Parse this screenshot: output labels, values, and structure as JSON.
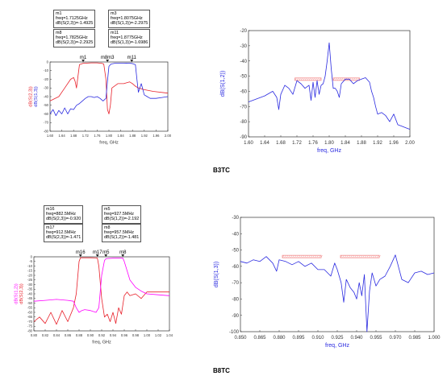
{
  "sections": [
    {
      "caption": "B3TC",
      "left_markers": [
        {
          "name": "m1",
          "line1": "freq=1.7125GHz",
          "line2": "dB(S(2,3))=-1.4925"
        },
        {
          "name": "m3",
          "line1": "freq=1.8075GHz",
          "line2": "dB(S(1,3))=-2.2975"
        },
        {
          "name": "m8",
          "line1": "freq=1.7825GHz",
          "line2": "dB(S(2,3))=-2.2925"
        },
        {
          "name": "m11",
          "line1": "freq=1.8775GHz",
          "line2": "dB(S(1,3))=-1.6986"
        }
      ]
    },
    {
      "caption": "B8TC",
      "left_markers": [
        {
          "name": "m16",
          "line1": "freq=882.5MHz",
          "line2": "dB(S(2,3))=-0.920"
        },
        {
          "name": "m5",
          "line1": "freq=927.5MHz",
          "line2": "dB(S(1,2))=-2.192"
        },
        {
          "name": "m17",
          "line1": "freq=912.5MHz",
          "line2": "dB(S(2,3))=-1.471"
        },
        {
          "name": "m8",
          "line1": "freq=957.5MHz",
          "line2": "dB(S(1,2))=-1.481"
        }
      ]
    }
  ],
  "colors": {
    "red": "#e8202a",
    "blue": "#2a2ae0",
    "magenta": "#ff00ff",
    "bandmark": "#f28b8b",
    "axis": "#333333"
  },
  "chart_data": [
    {
      "id": "b3tc-left",
      "type": "line",
      "xlabel": "freq, GHz",
      "ylabel": [
        "dB(S(2,3))",
        "dB(S(1,3))"
      ],
      "xlim": [
        1.6,
        2.0
      ],
      "ylim": [
        -80,
        0
      ],
      "xticks": [
        "1.60",
        "1.64",
        "1.68",
        "1.72",
        "1.76",
        "1.80",
        "1.84",
        "1.88",
        "1.92",
        "1.96",
        "2.00"
      ],
      "yticks": [
        "0",
        "-10",
        "-20",
        "-30",
        "-40",
        "-50",
        "-60",
        "-70",
        "-80"
      ],
      "marker_labels": [
        {
          "name": "m1",
          "x": 1.7125
        },
        {
          "name": "m8m3",
          "x": 1.795
        },
        {
          "name": "m11",
          "x": 1.8775
        }
      ],
      "series": [
        {
          "name": "dB(S(2,3))",
          "color": "red",
          "x": [
            1.6,
            1.63,
            1.65,
            1.67,
            1.68,
            1.685,
            1.69,
            1.7,
            1.7125,
            1.74,
            1.76,
            1.775,
            1.7825,
            1.79,
            1.795,
            1.8,
            1.805,
            1.81,
            1.83,
            1.85,
            1.87,
            1.875,
            1.88,
            1.89,
            1.9,
            1.92,
            1.95,
            2.0
          ],
          "y": [
            -45,
            -40,
            -30,
            -20,
            -18,
            -22,
            -30,
            -3,
            -1.5,
            -1,
            -1,
            -1.5,
            -2.3,
            -20,
            -55,
            -60,
            -50,
            -30,
            -25,
            -25,
            -23,
            -24,
            -25,
            -28,
            -30,
            -32,
            -34,
            -36
          ]
        },
        {
          "name": "dB(S(1,3))",
          "color": "blue",
          "x": [
            1.6,
            1.61,
            1.62,
            1.63,
            1.64,
            1.65,
            1.66,
            1.67,
            1.68,
            1.69,
            1.7,
            1.71,
            1.72,
            1.73,
            1.74,
            1.75,
            1.76,
            1.77,
            1.78,
            1.79,
            1.795,
            1.8,
            1.8075,
            1.82,
            1.84,
            1.86,
            1.8775,
            1.89,
            1.895,
            1.9,
            1.905,
            1.91,
            1.92,
            1.93,
            1.94,
            1.96,
            1.98,
            2.0
          ],
          "y": [
            -60,
            -55,
            -62,
            -56,
            -60,
            -53,
            -60,
            -54,
            -55,
            -50,
            -48,
            -45,
            -42,
            -40,
            -40,
            -41,
            -40,
            -42,
            -45,
            -42,
            -22,
            -5,
            -2.3,
            -1.5,
            -1.5,
            -1.3,
            -1.7,
            -3,
            -20,
            -35,
            -30,
            -25,
            -38,
            -40,
            -42,
            -42,
            -41,
            -40
          ]
        }
      ]
    },
    {
      "id": "b3tc-right",
      "type": "line",
      "xlabel": "freq, GHz",
      "ylabel": "dB(S(1,2))",
      "xlim": [
        1.6,
        2.0
      ],
      "ylim": [
        -90,
        -20
      ],
      "xticks": [
        "1.60",
        "1.64",
        "1.68",
        "1.72",
        "1.76",
        "1.80",
        "1.84",
        "1.88",
        "1.92",
        "1.96",
        "2.00"
      ],
      "yticks": [
        "-20",
        "-30",
        "-40",
        "-50",
        "-60",
        "-70",
        "-80",
        "-90"
      ],
      "band_marks": [
        [
          1.715,
          1.78
        ],
        [
          1.81,
          1.875
        ]
      ],
      "series": [
        {
          "name": "dB(S(1,2))",
          "color": "blue",
          "x": [
            1.6,
            1.62,
            1.64,
            1.66,
            1.67,
            1.675,
            1.68,
            1.69,
            1.7,
            1.71,
            1.72,
            1.73,
            1.74,
            1.75,
            1.755,
            1.76,
            1.765,
            1.77,
            1.775,
            1.78,
            1.785,
            1.79,
            1.795,
            1.8,
            1.805,
            1.81,
            1.815,
            1.82,
            1.825,
            1.83,
            1.84,
            1.85,
            1.86,
            1.87,
            1.88,
            1.89,
            1.9,
            1.905,
            1.91,
            1.915,
            1.92,
            1.93,
            1.94,
            1.95,
            1.96,
            1.97,
            1.98,
            1.99,
            2.0
          ],
          "y": [
            -67,
            -65,
            -63,
            -60,
            -64,
            -72,
            -62,
            -56,
            -58,
            -62,
            -53,
            -55,
            -58,
            -56,
            -66,
            -54,
            -64,
            -53,
            -62,
            -56,
            -55,
            -50,
            -40,
            -28,
            -45,
            -58,
            -58,
            -60,
            -64,
            -55,
            -52,
            -52,
            -55,
            -53,
            -52,
            -51,
            -54,
            -60,
            -64,
            -70,
            -75,
            -74,
            -76,
            -80,
            -75,
            -82,
            -83,
            -84,
            -85
          ]
        }
      ]
    },
    {
      "id": "b8tc-left",
      "type": "line",
      "xlabel": "freq, GHz",
      "ylabel": [
        "dB(S(1,2))",
        "dB(S(2,3))"
      ],
      "xlim": [
        0.8,
        1.04
      ],
      "ylim": [
        -80,
        0
      ],
      "xticks": [
        "0.80",
        "0.82",
        "0.84",
        "0.86",
        "0.88",
        "0.90",
        "0.92",
        "0.94",
        "0.96",
        "0.98",
        "1.00",
        "1.02",
        "1.04"
      ],
      "yticks": [
        "0",
        "-5",
        "-10",
        "-15",
        "-20",
        "-25",
        "-30",
        "-35",
        "-40",
        "-45",
        "-50",
        "-55",
        "-60",
        "-65",
        "-70",
        "-75",
        "-80"
      ],
      "marker_labels": [
        {
          "name": "m16",
          "x": 0.8825
        },
        {
          "name": "m17",
          "x": 0.9125
        },
        {
          "name": "m5",
          "x": 0.9275
        },
        {
          "name": "m8",
          "x": 0.9575
        }
      ],
      "series": [
        {
          "name": "dB(S(2,3))",
          "color": "red",
          "x": [
            0.8,
            0.81,
            0.82,
            0.83,
            0.84,
            0.85,
            0.86,
            0.87,
            0.875,
            0.88,
            0.8825,
            0.89,
            0.9,
            0.91,
            0.9125,
            0.915,
            0.92,
            0.925,
            0.93,
            0.935,
            0.94,
            0.945,
            0.95,
            0.955,
            0.96,
            0.965,
            0.97,
            0.98,
            0.99,
            1.0,
            1.02,
            1.04
          ],
          "y": [
            -70,
            -65,
            -72,
            -60,
            -73,
            -58,
            -70,
            -55,
            -40,
            -5,
            -1,
            -1,
            -1,
            -1.2,
            -1.5,
            -10,
            -45,
            -65,
            -62,
            -70,
            -60,
            -72,
            -55,
            -62,
            -42,
            -38,
            -42,
            -40,
            -45,
            -38,
            -38,
            -38
          ]
        },
        {
          "name": "dB(S(1,2))",
          "color": "magenta",
          "x": [
            0.8,
            0.82,
            0.84,
            0.86,
            0.87,
            0.875,
            0.88,
            0.885,
            0.89,
            0.9,
            0.91,
            0.915,
            0.92,
            0.925,
            0.9275,
            0.93,
            0.94,
            0.95,
            0.9575,
            0.96,
            0.965,
            0.97,
            0.98,
            0.99,
            1.0,
            1.02,
            1.04
          ],
          "y": [
            -48,
            -47,
            -46,
            -47,
            -48,
            -55,
            -60,
            -58,
            -57,
            -58,
            -60,
            -55,
            -20,
            -4,
            -2.2,
            -1.8,
            -1.5,
            -1.4,
            -1.5,
            -5,
            -15,
            -25,
            -33,
            -37,
            -40,
            -41,
            -42
          ]
        }
      ]
    },
    {
      "id": "b8tc-right",
      "type": "line",
      "xlabel": "freq, GHz",
      "ylabel": "dB(S(1,3))",
      "xlim": [
        0.85,
        1.0
      ],
      "ylim": [
        -100,
        -30
      ],
      "xticks": [
        "0.850",
        "0.865",
        "0.880",
        "0.895",
        "0.910",
        "0.925",
        "0.940",
        "0.955",
        "0.970",
        "0.985",
        "1.000"
      ],
      "yticks": [
        "-30",
        "-40",
        "-50",
        "-60",
        "-70",
        "-80",
        "-90",
        "-100"
      ],
      "band_marks": [
        [
          0.8825,
          0.9125
        ],
        [
          0.9275,
          0.9575
        ]
      ],
      "series": [
        {
          "name": "dB(S(1,3))",
          "color": "blue",
          "x": [
            0.85,
            0.855,
            0.86,
            0.865,
            0.87,
            0.875,
            0.878,
            0.88,
            0.885,
            0.89,
            0.895,
            0.9,
            0.905,
            0.91,
            0.915,
            0.92,
            0.923,
            0.925,
            0.928,
            0.93,
            0.932,
            0.935,
            0.938,
            0.94,
            0.942,
            0.944,
            0.946,
            0.948,
            0.95,
            0.952,
            0.955,
            0.958,
            0.962,
            0.966,
            0.97,
            0.975,
            0.98,
            0.985,
            0.99,
            0.995,
            1.0
          ],
          "y": [
            -57,
            -58,
            -56,
            -57,
            -54,
            -58,
            -63,
            -56,
            -57,
            -59,
            -57,
            -60,
            -58,
            -62,
            -62,
            -66,
            -58,
            -62,
            -70,
            -82,
            -68,
            -73,
            -76,
            -80,
            -70,
            -78,
            -65,
            -100,
            -75,
            -64,
            -72,
            -68,
            -66,
            -60,
            -53,
            -68,
            -70,
            -64,
            -63,
            -65,
            -64
          ]
        }
      ]
    }
  ]
}
